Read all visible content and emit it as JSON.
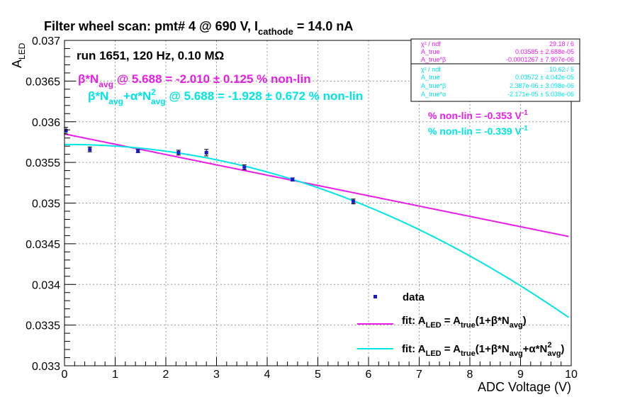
{
  "colors": {
    "magenta": "#e81ee8",
    "cyan": "#00e5e5",
    "data": "#1a1acc",
    "frame": "#000000",
    "grid": "#9a9a9a"
  },
  "chart_data": {
    "type": "scatter",
    "title": {
      "pre": "Filter wheel scan: pmt#   4 @   690 V, I",
      "sub": "cathode",
      "post": " = 14.0 nA"
    },
    "ylabel": {
      "main": "A",
      "sub": "LED"
    },
    "xlabel": "ADC Voltage (V)",
    "xlim": [
      0,
      10
    ],
    "ylim": [
      0.033,
      0.037
    ],
    "x_ticks": [
      "0",
      "1",
      "2",
      "3",
      "4",
      "5",
      "6",
      "7",
      "8",
      "9",
      "10"
    ],
    "y_ticks": [
      "0.033",
      "0.0335",
      "0.034",
      "0.0345",
      "0.035",
      "0.0355",
      "0.036",
      "0.0365",
      "0.037"
    ],
    "grid": true,
    "run_label": "run 1651, 120 Hz, 0.10 MΩ",
    "points": [
      {
        "x": 0.03,
        "y": 0.03589,
        "err": 4e-05
      },
      {
        "x": 0.5,
        "y": 0.03566,
        "err": 3e-05
      },
      {
        "x": 1.45,
        "y": 0.03564,
        "err": 2e-05
      },
      {
        "x": 2.25,
        "y": 0.03562,
        "err": 3e-05
      },
      {
        "x": 2.8,
        "y": 0.03562,
        "err": 4e-05
      },
      {
        "x": 3.55,
        "y": 0.03544,
        "err": 3e-05
      },
      {
        "x": 4.5,
        "y": 0.03529,
        "err": 2e-05
      },
      {
        "x": 5.7,
        "y": 0.03502,
        "err": 3e-05
      }
    ],
    "fits": [
      {
        "name": "linear",
        "color": "magenta",
        "A": 0.03585,
        "b": -0.0001267,
        "a": 0,
        "xrange": [
          0,
          9.95
        ]
      },
      {
        "name": "quadratic",
        "color": "cyan",
        "A": 0.03572,
        "b": 2.387e-06,
        "a": -2.171e-05,
        "xrange": [
          0,
          9.95
        ]
      }
    ],
    "annotations": {
      "lin_line": {
        "t1": "β*N",
        "s1": "avg",
        "t2": " @ 5.688 = -2.010 ± 0.125 % non-lin"
      },
      "quad_line": {
        "t1": "β*N",
        "s1": "avg",
        "t2": "+α*N",
        "sup": "2",
        "s2": "avg",
        "t3": " @ 5.688 = -1.928 ± 0.672 % non-lin"
      },
      "lin_slope": {
        "t": "% non-lin = -0.353 V",
        "sup": "-1"
      },
      "quad_slope": {
        "t": "% non-lin = -0.339 V",
        "sup": "-1"
      }
    },
    "stats_boxes": [
      {
        "color": "magenta",
        "rows": [
          {
            "label": "χ² / ndf",
            "value": "29.18 / 6"
          },
          {
            "label": "A_true",
            "value": "0.03585 ± 2.688e-05"
          },
          {
            "label": "A_true*β",
            "value": "-0.0001267 ± 7.907e-06"
          }
        ]
      },
      {
        "color": "cyan",
        "rows": [
          {
            "label": "χ² / ndf",
            "value": "10.62 / 5"
          },
          {
            "label": "A_true",
            "value": "0.03572 ± 4.042e-05"
          },
          {
            "label": "A_true*β",
            "value": "2.387e-06 ± 3.098e-06"
          },
          {
            "label": "A_true*α",
            "value": "-2.171e-05 ± 5.038e-06"
          }
        ]
      }
    ],
    "legend": {
      "position": "bottom-right",
      "data_label": "data",
      "fit1": {
        "a": "fit: A",
        "s1": "LED",
        "b": " = A",
        "s2": "true",
        "c": "(1+β*N",
        "s3": "avg",
        "d": ")"
      },
      "fit2": {
        "a": "fit: A",
        "s1": "LED",
        "b": " = A",
        "s2": "true",
        "c": "(1+β*N",
        "s3": "avg",
        "d": "+α*N",
        "sup": "2",
        "s4": "avg",
        "e": ")"
      }
    }
  }
}
